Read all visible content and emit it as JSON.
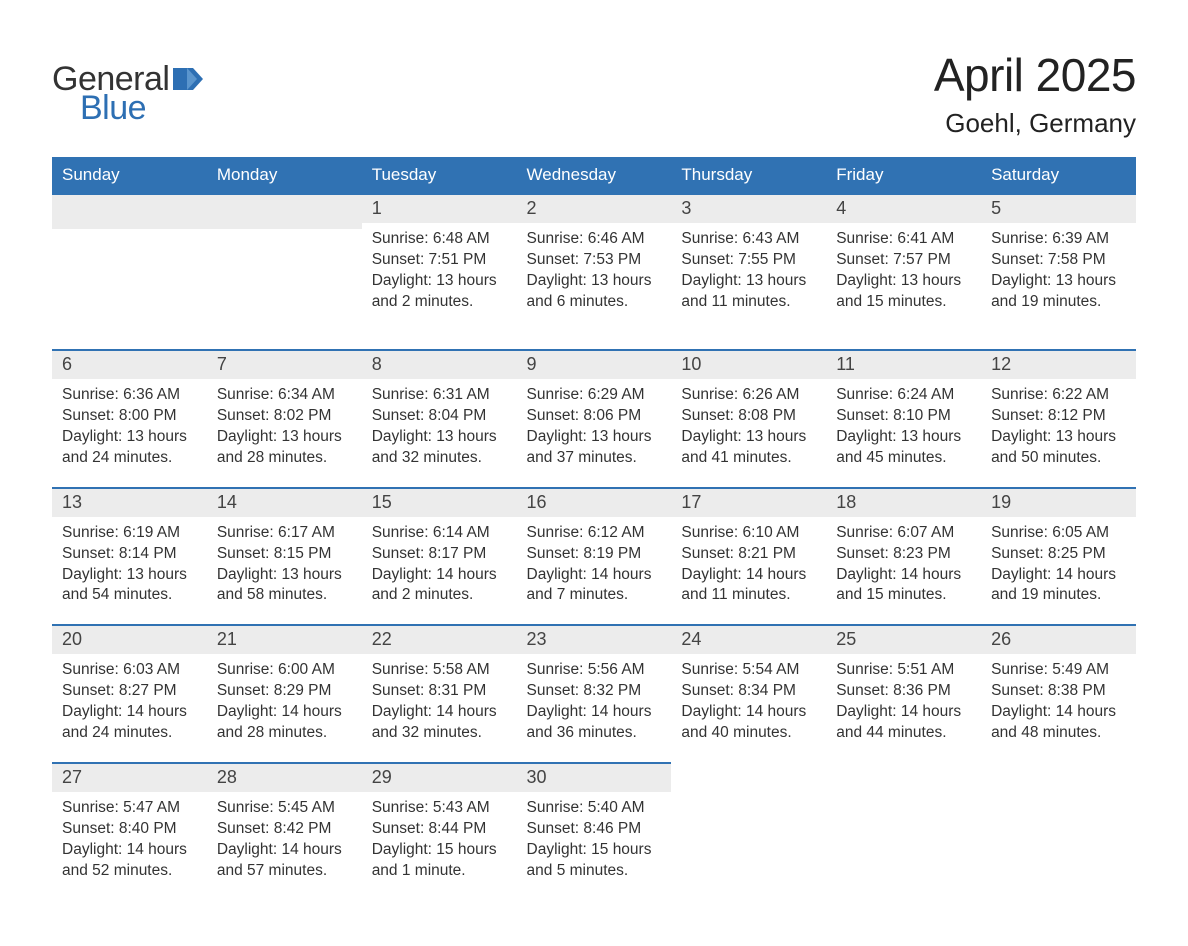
{
  "logo": {
    "word1": "General",
    "word2": "Blue"
  },
  "title": "April 2025",
  "subtitle": "Goehl, Germany",
  "colors": {
    "accent": "#3072b3",
    "header_bg": "#3072b3",
    "daynum_bg": "#ececec",
    "page_bg": "#ffffff",
    "text": "#333333"
  },
  "weekdays": [
    "Sunday",
    "Monday",
    "Tuesday",
    "Wednesday",
    "Thursday",
    "Friday",
    "Saturday"
  ],
  "weeks": [
    [
      null,
      null,
      {
        "n": "1",
        "sunrise": "6:48 AM",
        "sunset": "7:51 PM",
        "daylight": "13 hours and 2 minutes."
      },
      {
        "n": "2",
        "sunrise": "6:46 AM",
        "sunset": "7:53 PM",
        "daylight": "13 hours and 6 minutes."
      },
      {
        "n": "3",
        "sunrise": "6:43 AM",
        "sunset": "7:55 PM",
        "daylight": "13 hours and 11 minutes."
      },
      {
        "n": "4",
        "sunrise": "6:41 AM",
        "sunset": "7:57 PM",
        "daylight": "13 hours and 15 minutes."
      },
      {
        "n": "5",
        "sunrise": "6:39 AM",
        "sunset": "7:58 PM",
        "daylight": "13 hours and 19 minutes."
      }
    ],
    [
      {
        "n": "6",
        "sunrise": "6:36 AM",
        "sunset": "8:00 PM",
        "daylight": "13 hours and 24 minutes."
      },
      {
        "n": "7",
        "sunrise": "6:34 AM",
        "sunset": "8:02 PM",
        "daylight": "13 hours and 28 minutes."
      },
      {
        "n": "8",
        "sunrise": "6:31 AM",
        "sunset": "8:04 PM",
        "daylight": "13 hours and 32 minutes."
      },
      {
        "n": "9",
        "sunrise": "6:29 AM",
        "sunset": "8:06 PM",
        "daylight": "13 hours and 37 minutes."
      },
      {
        "n": "10",
        "sunrise": "6:26 AM",
        "sunset": "8:08 PM",
        "daylight": "13 hours and 41 minutes."
      },
      {
        "n": "11",
        "sunrise": "6:24 AM",
        "sunset": "8:10 PM",
        "daylight": "13 hours and 45 minutes."
      },
      {
        "n": "12",
        "sunrise": "6:22 AM",
        "sunset": "8:12 PM",
        "daylight": "13 hours and 50 minutes."
      }
    ],
    [
      {
        "n": "13",
        "sunrise": "6:19 AM",
        "sunset": "8:14 PM",
        "daylight": "13 hours and 54 minutes."
      },
      {
        "n": "14",
        "sunrise": "6:17 AM",
        "sunset": "8:15 PM",
        "daylight": "13 hours and 58 minutes."
      },
      {
        "n": "15",
        "sunrise": "6:14 AM",
        "sunset": "8:17 PM",
        "daylight": "14 hours and 2 minutes."
      },
      {
        "n": "16",
        "sunrise": "6:12 AM",
        "sunset": "8:19 PM",
        "daylight": "14 hours and 7 minutes."
      },
      {
        "n": "17",
        "sunrise": "6:10 AM",
        "sunset": "8:21 PM",
        "daylight": "14 hours and 11 minutes."
      },
      {
        "n": "18",
        "sunrise": "6:07 AM",
        "sunset": "8:23 PM",
        "daylight": "14 hours and 15 minutes."
      },
      {
        "n": "19",
        "sunrise": "6:05 AM",
        "sunset": "8:25 PM",
        "daylight": "14 hours and 19 minutes."
      }
    ],
    [
      {
        "n": "20",
        "sunrise": "6:03 AM",
        "sunset": "8:27 PM",
        "daylight": "14 hours and 24 minutes."
      },
      {
        "n": "21",
        "sunrise": "6:00 AM",
        "sunset": "8:29 PM",
        "daylight": "14 hours and 28 minutes."
      },
      {
        "n": "22",
        "sunrise": "5:58 AM",
        "sunset": "8:31 PM",
        "daylight": "14 hours and 32 minutes."
      },
      {
        "n": "23",
        "sunrise": "5:56 AM",
        "sunset": "8:32 PM",
        "daylight": "14 hours and 36 minutes."
      },
      {
        "n": "24",
        "sunrise": "5:54 AM",
        "sunset": "8:34 PM",
        "daylight": "14 hours and 40 minutes."
      },
      {
        "n": "25",
        "sunrise": "5:51 AM",
        "sunset": "8:36 PM",
        "daylight": "14 hours and 44 minutes."
      },
      {
        "n": "26",
        "sunrise": "5:49 AM",
        "sunset": "8:38 PM",
        "daylight": "14 hours and 48 minutes."
      }
    ],
    [
      {
        "n": "27",
        "sunrise": "5:47 AM",
        "sunset": "8:40 PM",
        "daylight": "14 hours and 52 minutes."
      },
      {
        "n": "28",
        "sunrise": "5:45 AM",
        "sunset": "8:42 PM",
        "daylight": "14 hours and 57 minutes."
      },
      {
        "n": "29",
        "sunrise": "5:43 AM",
        "sunset": "8:44 PM",
        "daylight": "15 hours and 1 minute."
      },
      {
        "n": "30",
        "sunrise": "5:40 AM",
        "sunset": "8:46 PM",
        "daylight": "15 hours and 5 minutes."
      },
      null,
      null,
      null
    ]
  ],
  "labels": {
    "sunrise": "Sunrise: ",
    "sunset": "Sunset: ",
    "daylight": "Daylight: "
  }
}
